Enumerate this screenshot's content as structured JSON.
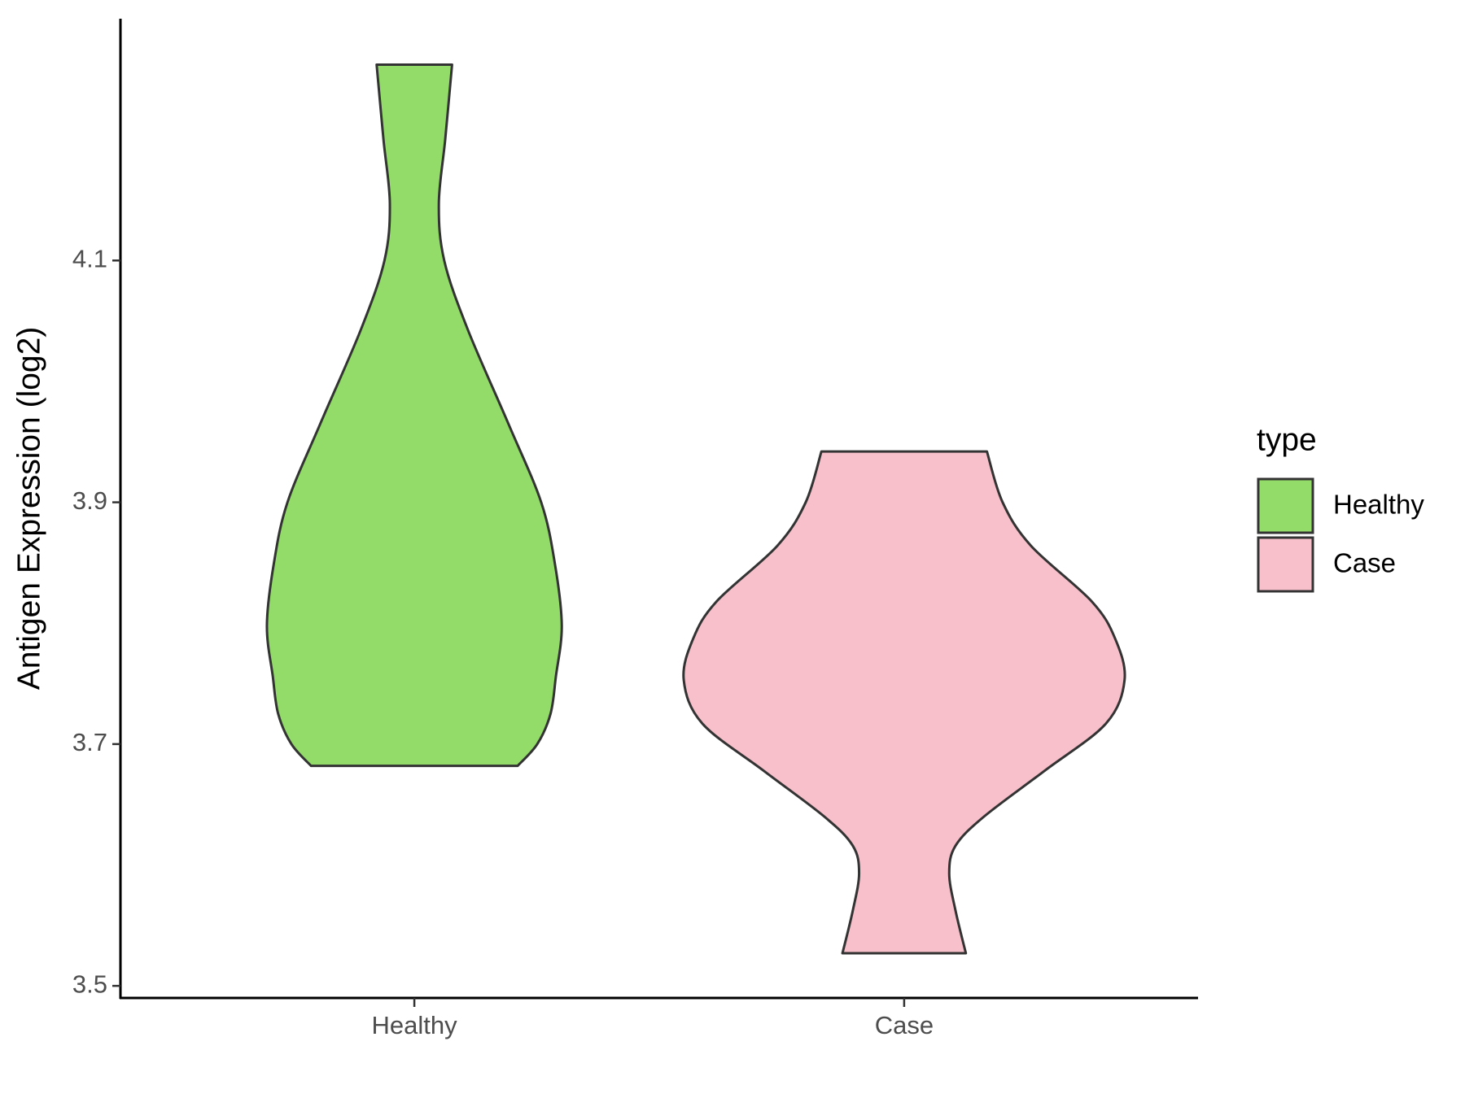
{
  "chart_data": {
    "type": "violin",
    "y_label": "Antigen Expression (log2)",
    "legend_title": "type",
    "categories": [
      "Healthy",
      "Case"
    ],
    "series": [
      {
        "name": "Healthy",
        "color": "#94dc6a",
        "y": [
          4.262,
          4.2,
          4.147,
          4.1,
          4.043,
          3.965,
          3.9,
          3.849,
          3.798,
          3.756,
          3.725,
          3.7,
          3.682
        ],
        "density": [
          0.077,
          0.063,
          0.05,
          0.061,
          0.109,
          0.192,
          0.259,
          0.287,
          0.301,
          0.289,
          0.278,
          0.251,
          0.211
        ]
      },
      {
        "name": "Case",
        "color": "#f7c0cb",
        "y": [
          3.942,
          3.9,
          3.864,
          3.818,
          3.787,
          3.753,
          3.717,
          3.678,
          3.64,
          3.616,
          3.593,
          3.562,
          3.527
        ],
        "density": [
          0.169,
          0.201,
          0.259,
          0.383,
          0.431,
          0.45,
          0.412,
          0.287,
          0.163,
          0.105,
          0.092,
          0.105,
          0.126
        ]
      }
    ],
    "ylim": [
      3.49,
      4.3
    ],
    "yticks": [
      3.5,
      3.7,
      3.9,
      4.1
    ],
    "legend_position": "right"
  }
}
